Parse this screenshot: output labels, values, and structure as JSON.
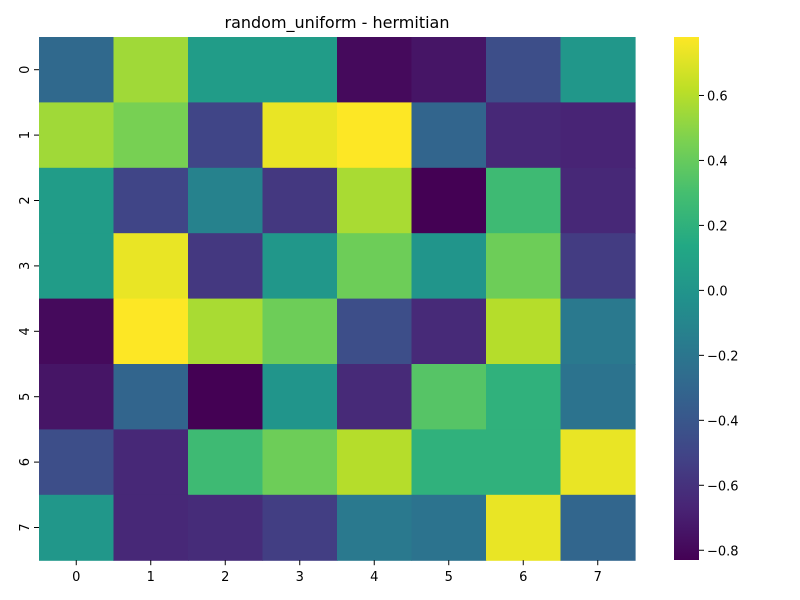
{
  "chart_data": {
    "type": "heatmap",
    "title": "random_uniform - hermitian",
    "xlabel": "",
    "ylabel": "",
    "x_categories": [
      "0",
      "1",
      "2",
      "3",
      "4",
      "5",
      "6",
      "7"
    ],
    "y_categories": [
      "0",
      "1",
      "2",
      "3",
      "4",
      "5",
      "6",
      "7"
    ],
    "values": [
      [
        -0.28,
        0.55,
        0.05,
        0.05,
        -0.79,
        -0.74,
        -0.45,
        0.02
      ],
      [
        0.55,
        0.45,
        -0.5,
        0.73,
        0.78,
        -0.31,
        -0.65,
        -0.67
      ],
      [
        0.05,
        -0.5,
        -0.12,
        -0.57,
        0.57,
        -0.83,
        0.27,
        -0.65
      ],
      [
        0.05,
        0.73,
        -0.57,
        0.02,
        0.42,
        0.0,
        0.42,
        -0.55
      ],
      [
        -0.79,
        0.78,
        0.57,
        0.42,
        -0.45,
        -0.64,
        0.6,
        -0.18
      ],
      [
        -0.74,
        -0.31,
        -0.83,
        0.0,
        -0.64,
        0.35,
        0.2,
        -0.22
      ],
      [
        -0.45,
        -0.65,
        0.27,
        0.42,
        0.6,
        0.2,
        0.2,
        0.73
      ],
      [
        0.02,
        -0.65,
        -0.63,
        -0.54,
        -0.18,
        -0.22,
        0.73,
        -0.3
      ]
    ],
    "colormap": "viridis",
    "vmin": -0.83,
    "vmax": 0.78,
    "colorbar_ticks": [
      -0.8,
      -0.6,
      -0.4,
      -0.2,
      0.0,
      0.2,
      0.4,
      0.6
    ],
    "colorbar_tick_labels": [
      "−0.8",
      "−0.6",
      "−0.4",
      "−0.2",
      "0.0",
      "0.2",
      "0.4",
      "0.6"
    ]
  }
}
